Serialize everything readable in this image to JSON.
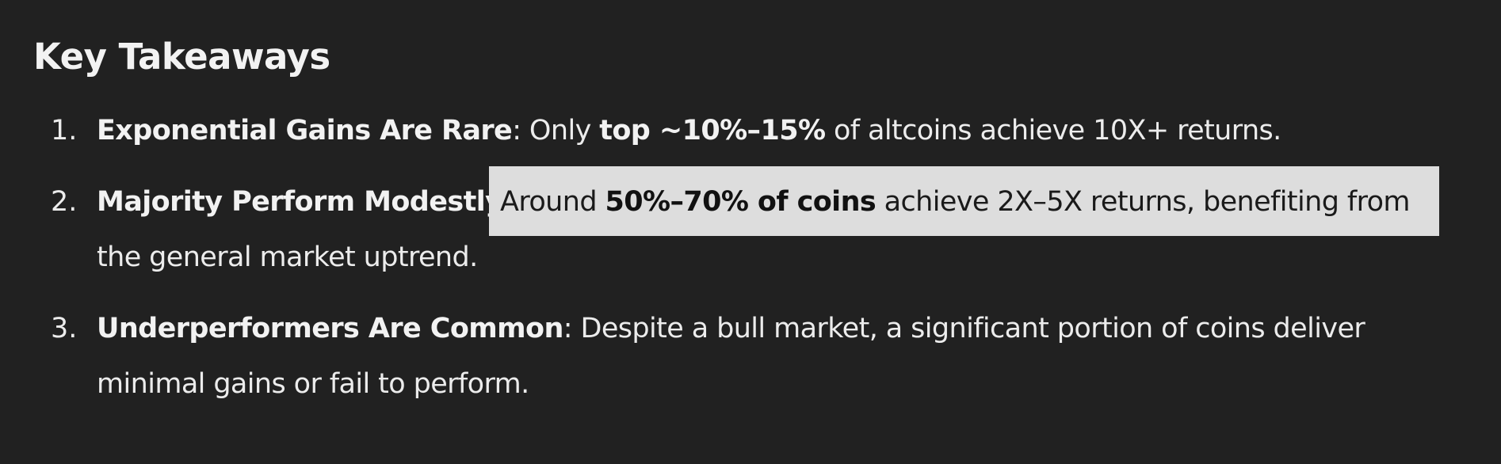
{
  "heading": "Key Takeaways",
  "items": [
    {
      "number": "1.",
      "title": "Exponential Gains Are Rare",
      "colon": ":",
      "text_a": " Only ",
      "bold_a": "top ~10%–15%",
      "text_b": " of altcoins achieve 10X+ returns."
    },
    {
      "number": "2.",
      "title": "Majority Perform Modestly",
      "colon": ":",
      "highlight_lead": " Around ",
      "highlight_bold": "50%–70% of coins",
      "highlight_tail": " achieve 2X–5X returns, benefiting from",
      "continuation": "the general market uptrend."
    },
    {
      "number": "3.",
      "title": "Underperformers Are Common",
      "colon": ":",
      "text_a": " Despite a bull market, a significant portion of coins deliver",
      "continuation": "minimal gains or fail to perform."
    }
  ],
  "colors": {
    "background": "#212121",
    "text": "#ececec",
    "highlight": "#dddddd"
  }
}
